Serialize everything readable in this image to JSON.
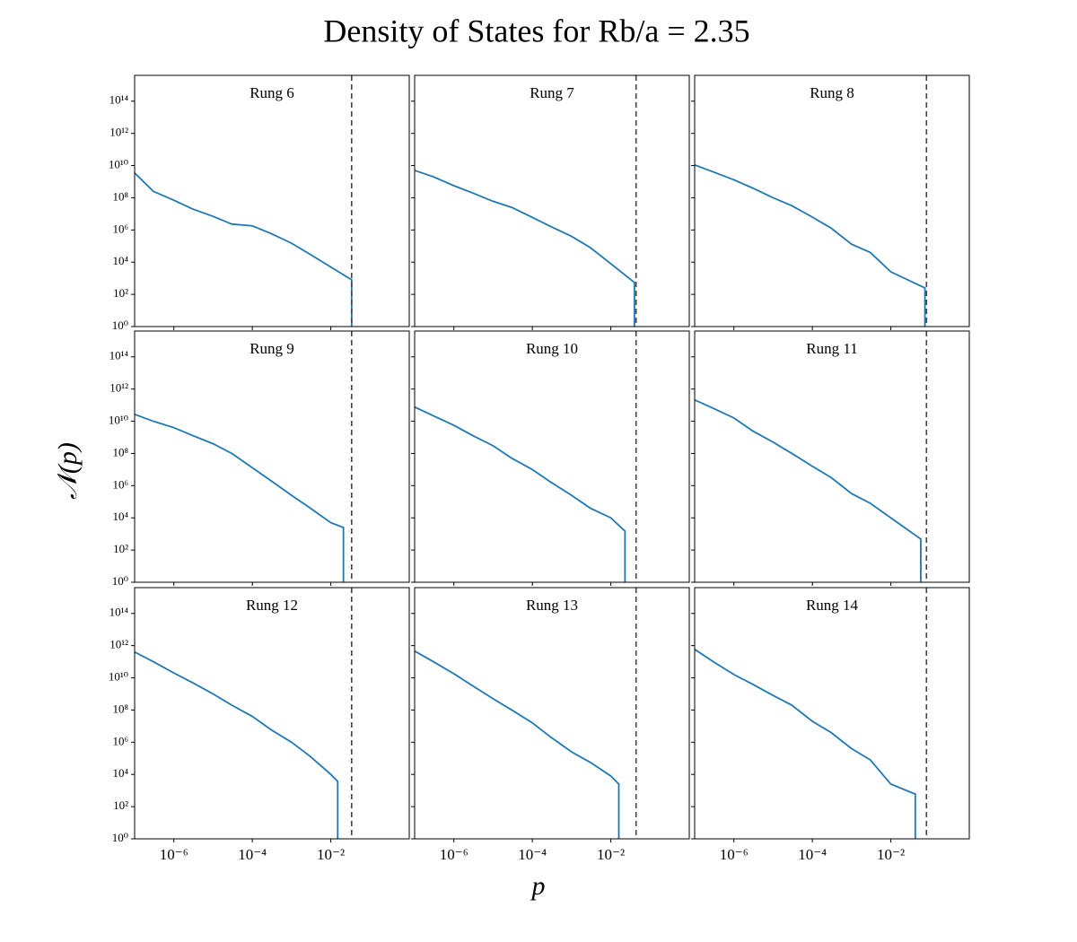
{
  "title": "Density of States for Rb/a = 2.35",
  "xlabel": "p",
  "ylabel": "𝒩(p)",
  "log_x": true,
  "log_y": true,
  "xlim": [
    1e-07,
    1
  ],
  "ylim": [
    1,
    4000000000000000.0
  ],
  "xticks": [
    {
      "value": 1e-06,
      "label": "10⁻⁶"
    },
    {
      "value": 0.0001,
      "label": "10⁻⁴"
    },
    {
      "value": 0.01,
      "label": "10⁻²"
    }
  ],
  "yticks": [
    {
      "value": 1,
      "label": "10⁰"
    },
    {
      "value": 100,
      "label": "10²"
    },
    {
      "value": 10000.0,
      "label": "10⁴"
    },
    {
      "value": 1000000.0,
      "label": "10⁶"
    },
    {
      "value": 100000000.0,
      "label": "10⁸"
    },
    {
      "value": 10000000000.0,
      "label": "10¹⁰"
    },
    {
      "value": 1000000000000.0,
      "label": "10¹²"
    },
    {
      "value": 100000000000000.0,
      "label": "10¹⁴"
    }
  ],
  "chart_data": [
    {
      "type": "line",
      "title": "Rung 6",
      "color": "#1f77b4",
      "vline": 0.034,
      "x": [
        1e-07,
        3e-07,
        1e-06,
        3e-06,
        1e-05,
        3e-05,
        0.0001,
        0.0003,
        0.001,
        0.003,
        0.01,
        0.034,
        0.034
      ],
      "values": [
        3500000000.0,
        250000000.0,
        70000000.0,
        20000000.0,
        7000000.0,
        2300000.0,
        1800000.0,
        600000.0,
        150000.0,
        30000.0,
        5000.0,
        800,
        1
      ]
    },
    {
      "type": "line",
      "title": "Rung 7",
      "color": "#1f77b4",
      "vline": 0.044,
      "x": [
        1e-07,
        3e-07,
        1e-06,
        3e-06,
        1e-05,
        3e-05,
        0.0001,
        0.0003,
        0.001,
        0.003,
        0.01,
        0.04,
        0.04
      ],
      "values": [
        5000000000.0,
        2000000000.0,
        560000000.0,
        200000000.0,
        60000000.0,
        25000000.0,
        6000000.0,
        1600000.0,
        400000.0,
        80000.0,
        8000.0,
        540,
        1
      ]
    },
    {
      "type": "line",
      "title": "Rung 8",
      "color": "#1f77b4",
      "vline": 0.081,
      "x": [
        1e-07,
        3e-07,
        1e-06,
        3e-06,
        1e-05,
        3e-05,
        0.0001,
        0.0003,
        0.001,
        0.003,
        0.01,
        0.074,
        0.074
      ],
      "values": [
        11000000000.0,
        4000000000.0,
        1300000000.0,
        400000000.0,
        100000000.0,
        32000000.0,
        6300000.0,
        1300000.0,
        130000.0,
        40000.0,
        2500.0,
        250,
        1
      ]
    },
    {
      "type": "line",
      "title": "Rung 9",
      "color": "#1f77b4",
      "vline": 0.034,
      "x": [
        1e-07,
        3e-07,
        1e-06,
        3e-06,
        1e-05,
        3e-05,
        0.0001,
        0.0003,
        0.001,
        0.003,
        0.01,
        0.021,
        0.021
      ],
      "values": [
        27000000000.0,
        10000000000.0,
        4000000000.0,
        1300000000.0,
        400000000.0,
        100000000.0,
        13000000.0,
        2000000.0,
        250000.0,
        40000.0,
        5000.0,
        2500.0,
        1
      ]
    },
    {
      "type": "line",
      "title": "Rung 10",
      "color": "#1f77b4",
      "vline": 0.044,
      "x": [
        1e-07,
        3e-07,
        1e-06,
        3e-06,
        1e-05,
        3e-05,
        0.0001,
        0.0003,
        0.001,
        0.003,
        0.01,
        0.023,
        0.023
      ],
      "values": [
        76000000000.0,
        22000000000.0,
        5600000000.0,
        1300000000.0,
        300000000.0,
        50000000.0,
        10000000.0,
        1600000.0,
        250000.0,
        40000.0,
        10000.0,
        1500.0,
        1
      ]
    },
    {
      "type": "line",
      "title": "Rung 11",
      "color": "#1f77b4",
      "vline": 0.081,
      "x": [
        1e-07,
        3e-07,
        1e-06,
        3e-06,
        1e-05,
        3e-05,
        0.0001,
        0.0003,
        0.001,
        0.003,
        0.01,
        0.058,
        0.058
      ],
      "values": [
        210000000000.0,
        63000000000.0,
        16000000000.0,
        2500000000.0,
        500000000.0,
        100000000.0,
        16000000.0,
        3200000.0,
        320000.0,
        80000.0,
        10000.0,
        480,
        1
      ]
    },
    {
      "type": "line",
      "title": "Rung 12",
      "color": "#1f77b4",
      "vline": 0.034,
      "x": [
        1e-07,
        3e-07,
        1e-06,
        3e-06,
        1e-05,
        3e-05,
        0.0001,
        0.0003,
        0.001,
        0.003,
        0.01,
        0.015,
        0.015
      ],
      "values": [
        400000000000.0,
        100000000000.0,
        20000000000.0,
        5000000000.0,
        1000000000.0,
        200000000.0,
        40000000.0,
        6000000.0,
        1000000.0,
        130000.0,
        10000.0,
        3700.0,
        1
      ]
    },
    {
      "type": "line",
      "title": "Rung 13",
      "color": "#1f77b4",
      "vline": 0.044,
      "x": [
        1e-07,
        3e-07,
        1e-06,
        3e-06,
        1e-05,
        3e-05,
        0.0001,
        0.0003,
        0.001,
        0.003,
        0.01,
        0.016,
        0.016
      ],
      "values": [
        460000000000.0,
        100000000000.0,
        18000000000.0,
        3200000000.0,
        500000000.0,
        100000000.0,
        16000000.0,
        2000000.0,
        250000.0,
        56000.0,
        8000.0,
        2500.0,
        1
      ]
    },
    {
      "type": "line",
      "title": "Rung 14",
      "color": "#1f77b4",
      "vline": 0.081,
      "x": [
        1e-07,
        3e-07,
        1e-06,
        3e-06,
        1e-05,
        3e-05,
        0.0001,
        0.0003,
        0.001,
        0.003,
        0.01,
        0.042,
        0.042
      ],
      "values": [
        590000000000.0,
        100000000000.0,
        16000000000.0,
        4000000000.0,
        800000000.0,
        200000000.0,
        20000000.0,
        4000000.0,
        400000.0,
        80000.0,
        2500.0,
        600,
        1
      ]
    }
  ]
}
